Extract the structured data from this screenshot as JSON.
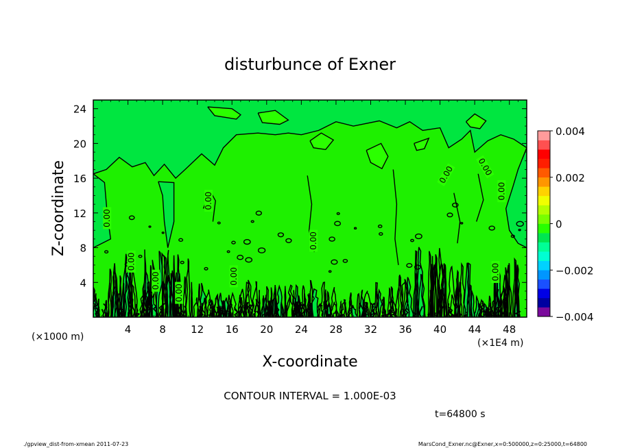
{
  "chart_data": {
    "type": "heatmap",
    "title": "disturbunce of Exner",
    "xlabel": "X-coordinate",
    "ylabel": "Z-coordinate",
    "x_unit": "(×1E4 m)",
    "y_unit": "(×1000 m)",
    "x_ticks": [
      4,
      8,
      12,
      16,
      20,
      24,
      28,
      32,
      36,
      40,
      44,
      48
    ],
    "y_ticks": [
      4,
      8,
      12,
      16,
      20,
      24
    ],
    "xlim": [
      0,
      50
    ],
    "ylim": [
      0,
      25
    ],
    "colorbar": {
      "min": -0.004,
      "max": 0.004,
      "tick_values": [
        0.004,
        0.002,
        0,
        -0.002,
        -0.004
      ],
      "tick_labels": [
        "0.004",
        "0.002",
        "0",
        "−0.002",
        "−0.004"
      ],
      "colors": [
        "#7a0a9c",
        "#0000a0",
        "#0000e6",
        "#1a50ff",
        "#0096ff",
        "#00d2ff",
        "#00ffd2",
        "#00ff96",
        "#00e650",
        "#28ff00",
        "#78ff00",
        "#b4ff00",
        "#f0ff00",
        "#ffd200",
        "#ff9600",
        "#ff5a00",
        "#ff1e00",
        "#ff0000",
        "#ff5050",
        "#ff9b9b"
      ]
    },
    "field_colors": {
      "background": "#1ef000",
      "positive": "#2bff00",
      "negative": "#00e640"
    },
    "zero_contour_labels": [
      {
        "x": 1.6,
        "y": 11.4,
        "rot": 90
      },
      {
        "x": 4.4,
        "y": 6.4,
        "rot": 90
      },
      {
        "x": 7.2,
        "y": 4.2,
        "rot": 90
      },
      {
        "x": 9.9,
        "y": 2.8,
        "rot": 90
      },
      {
        "x": 13.3,
        "y": 13.4,
        "rot": 90
      },
      {
        "x": 16.2,
        "y": 4.7,
        "rot": 90
      },
      {
        "x": 25.4,
        "y": 8.8,
        "rot": 90
      },
      {
        "x": 40.7,
        "y": 16.4,
        "rot": 60
      },
      {
        "x": 45.2,
        "y": 17.3,
        "rot": -60
      },
      {
        "x": 47.1,
        "y": 14.5,
        "rot": 90
      },
      {
        "x": 46.4,
        "y": 5.2,
        "rot": 90
      }
    ],
    "zero_contour_label_text": "0.00",
    "annotations": {
      "contour_interval": "CONTOUR INTERVAL = 1.000E-03",
      "time": "t=64800 s",
      "footer_left": "./gpview_dist-from-xmean   2011-07-23",
      "footer_right": "MarsCond_Exner.nc@Exner,x=0:500000,z=0:25000,t=64800"
    }
  }
}
